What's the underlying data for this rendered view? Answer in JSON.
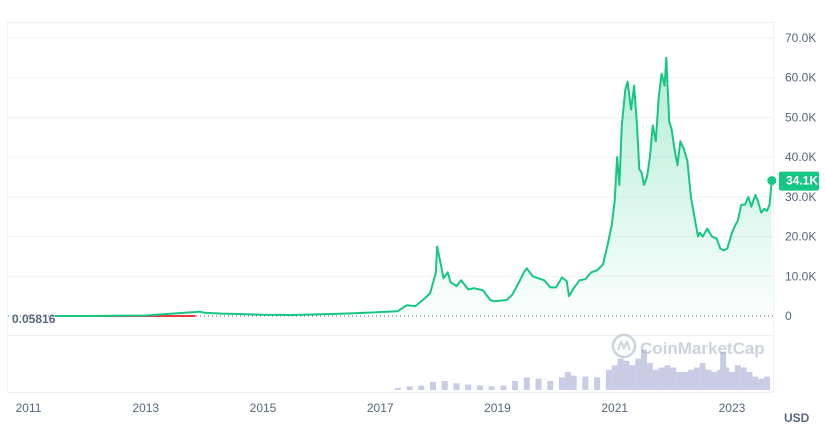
{
  "chart_data": {
    "type": "area",
    "currency": "USD",
    "y_ticks": [
      "0",
      "10.0K",
      "20.0K",
      "30.0K",
      "40.0K",
      "50.0K",
      "60.0K",
      "70.0K"
    ],
    "y_tick_values": [
      0,
      10000,
      20000,
      30000,
      40000,
      50000,
      60000,
      70000
    ],
    "ylim": [
      0,
      70000
    ],
    "x_ticks": [
      "2011",
      "2013",
      "2015",
      "2017",
      "2019",
      "2021",
      "2023"
    ],
    "x_tick_values": [
      2011.0,
      2013.0,
      2015.0,
      2017.0,
      2019.0,
      2021.0,
      2023.0
    ],
    "xlim": [
      2010.65,
      2023.7
    ],
    "baseline_label": "0.05816",
    "current_label": "34.1K",
    "current_value": 34100,
    "watermark": "CoinMarketCap",
    "colors": {
      "line": "#16c784",
      "baseline": "#ea3943",
      "volume": "#c9cce5",
      "grid": "#eff2f5",
      "text": "#58667e"
    },
    "series": [
      {
        "x": [
          2011.45,
          2012.0,
          2013.0,
          2013.85,
          2013.92,
          2014.0,
          2014.3,
          2014.6,
          2015.0,
          2015.5,
          2016.0,
          2016.5,
          2016.9,
          2017.0,
          2017.3,
          2017.45,
          2017.6,
          2017.75,
          2017.85,
          2017.95,
          2017.97,
          2018.02,
          2018.08,
          2018.15,
          2018.2,
          2018.3,
          2018.38,
          2018.5,
          2018.6,
          2018.75,
          2018.88,
          2018.95,
          2019.0,
          2019.15,
          2019.25,
          2019.35,
          2019.45,
          2019.5,
          2019.6,
          2019.7,
          2019.8,
          2019.9,
          2020.0,
          2020.1,
          2020.18,
          2020.22,
          2020.3,
          2020.4,
          2020.5,
          2020.6,
          2020.7,
          2020.8,
          2020.88,
          2020.95,
          2021.0,
          2021.04,
          2021.08,
          2021.12,
          2021.18,
          2021.22,
          2021.28,
          2021.33,
          2021.38,
          2021.42,
          2021.46,
          2021.5,
          2021.55,
          2021.6,
          2021.65,
          2021.7,
          2021.75,
          2021.8,
          2021.85,
          2021.88,
          2021.93,
          2021.97,
          2022.02,
          2022.07,
          2022.12,
          2022.18,
          2022.24,
          2022.3,
          2022.36,
          2022.42,
          2022.45,
          2022.5,
          2022.58,
          2022.66,
          2022.74,
          2022.8,
          2022.86,
          2022.92,
          2023.0,
          2023.06,
          2023.1,
          2023.16,
          2023.22,
          2023.28,
          2023.33,
          2023.4,
          2023.44,
          2023.5,
          2023.55,
          2023.6,
          2023.64,
          2023.68
        ],
        "values": [
          0.06,
          5,
          130,
          1000,
          1100,
          800,
          600,
          500,
          300,
          250,
          430,
          650,
          900,
          1000,
          1200,
          2700,
          2500,
          4300,
          5700,
          11000,
          17500,
          14000,
          9500,
          11000,
          8500,
          7500,
          9000,
          6700,
          7000,
          6500,
          4000,
          3700,
          3800,
          4000,
          5300,
          8000,
          11000,
          12000,
          10000,
          9500,
          9000,
          7200,
          7200,
          9700,
          8800,
          5000,
          7000,
          9000,
          9300,
          11000,
          11500,
          13000,
          18000,
          23000,
          29000,
          40000,
          33000,
          48000,
          57000,
          59000,
          52000,
          58000,
          48000,
          37000,
          36000,
          33000,
          35000,
          40000,
          48000,
          44000,
          55000,
          61000,
          58000,
          65000,
          49000,
          47000,
          42000,
          38000,
          44000,
          42000,
          39000,
          30000,
          25000,
          20000,
          21000,
          20000,
          22000,
          20000,
          19500,
          17000,
          16500,
          17000,
          21000,
          23000,
          24000,
          28000,
          28000,
          30000,
          27500,
          30500,
          29000,
          26000,
          27000,
          26500,
          28000,
          34100
        ]
      }
    ],
    "volume": {
      "x": [
        2017.3,
        2017.5,
        2017.7,
        2017.9,
        2018.1,
        2018.3,
        2018.5,
        2018.7,
        2018.9,
        2019.1,
        2019.3,
        2019.5,
        2019.7,
        2019.9,
        2020.1,
        2020.2,
        2020.3,
        2020.5,
        2020.7,
        2020.9,
        2021.0,
        2021.1,
        2021.2,
        2021.3,
        2021.4,
        2021.5,
        2021.6,
        2021.7,
        2021.8,
        2021.9,
        2022.0,
        2022.1,
        2022.2,
        2022.3,
        2022.4,
        2022.5,
        2022.6,
        2022.7,
        2022.8,
        2022.85,
        2022.9,
        2023.0,
        2023.1,
        2023.2,
        2023.3,
        2023.4,
        2023.5,
        2023.6
      ],
      "values": [
        0.05,
        0.08,
        0.1,
        0.18,
        0.2,
        0.15,
        0.12,
        0.1,
        0.08,
        0.1,
        0.2,
        0.28,
        0.25,
        0.2,
        0.28,
        0.4,
        0.32,
        0.3,
        0.28,
        0.45,
        0.55,
        0.7,
        0.65,
        0.55,
        0.7,
        0.9,
        0.6,
        0.45,
        0.5,
        0.55,
        0.5,
        0.4,
        0.4,
        0.45,
        0.5,
        0.6,
        0.45,
        0.4,
        0.45,
        0.85,
        0.5,
        0.4,
        0.55,
        0.5,
        0.4,
        0.3,
        0.25,
        0.3
      ]
    }
  }
}
